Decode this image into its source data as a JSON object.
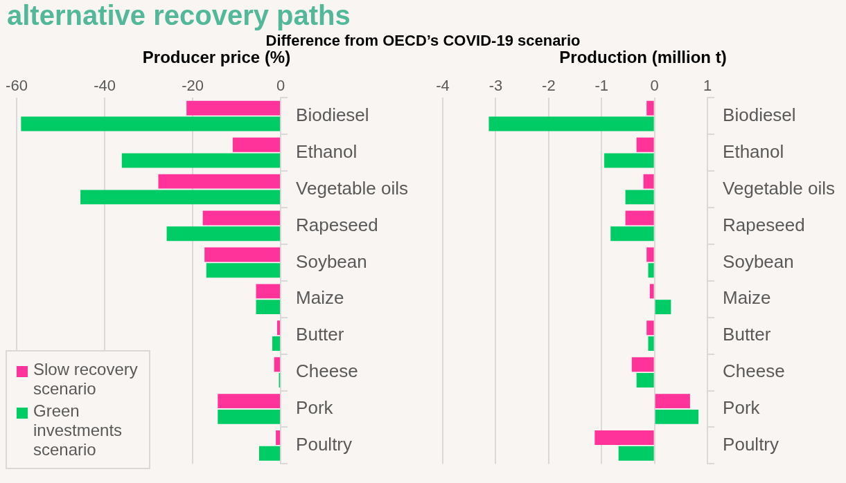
{
  "chart_data": [
    {
      "type": "bar",
      "orientation": "horizontal",
      "title": "Producer price (%)",
      "annotations": [
        "alternative recovery paths",
        "Difference from OECD’s COVID-19 scenario"
      ],
      "categories": [
        "Biodiesel",
        "Ethanol",
        "Vegetable oils",
        "Rapeseed",
        "Soybean",
        "Maize",
        "Butter",
        "Cheese",
        "Pork",
        "Poultry"
      ],
      "series": [
        {
          "name": "Slow recovery scenario",
          "color": "#ff3399",
          "values": [
            -21.4,
            -10.9,
            -27.8,
            -17.7,
            -17.3,
            -5.6,
            -0.8,
            -1.5,
            -14.3,
            -1.1
          ]
        },
        {
          "name": "Green investments scenario",
          "color": "#00cc66",
          "values": [
            -59,
            -36.1,
            -45.5,
            -25.9,
            -16.9,
            -5.6,
            -1.9,
            -0.4,
            -14.3,
            -4.9
          ]
        }
      ],
      "xlim": [
        -60,
        0
      ],
      "xticks": [
        -60,
        -40,
        -20,
        0
      ],
      "grid": "x",
      "legend": "bottom left"
    },
    {
      "type": "bar",
      "orientation": "horizontal",
      "title": "Production (million t)",
      "categories": [
        "Biodiesel",
        "Ethanol",
        "Vegetable oils",
        "Rapeseed",
        "Soybean",
        "Maize",
        "Butter",
        "Cheese",
        "Pork",
        "Poultry"
      ],
      "series": [
        {
          "color": "#ff3399",
          "values": [
            -0.15,
            -0.34,
            -0.21,
            -0.55,
            -0.15,
            -0.09,
            -0.15,
            -0.43,
            0.67,
            -1.13
          ]
        },
        {
          "color": "#00cc66",
          "values": [
            -3.13,
            -0.95,
            -0.55,
            -0.83,
            -0.12,
            0.31,
            -0.12,
            -0.34,
            0.83,
            -0.68
          ]
        }
      ],
      "xlim": [
        -4,
        1
      ],
      "xticks": [
        -4,
        -3,
        -2,
        -1,
        0,
        1
      ],
      "grid": "x"
    }
  ]
}
